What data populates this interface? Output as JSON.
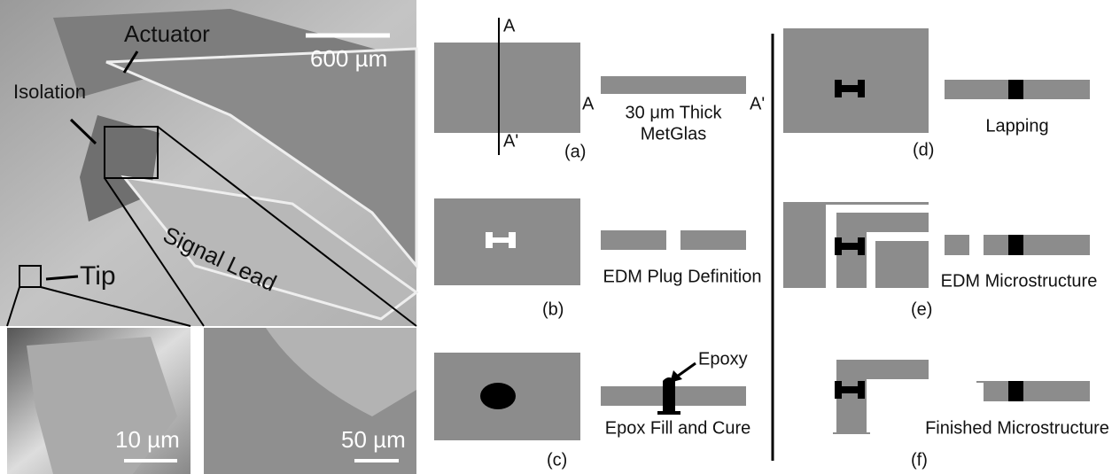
{
  "photo": {
    "labels": [
      "Actuator",
      "600 µm",
      "Isolation",
      "Signal Lead",
      "Tip"
    ],
    "insets": [
      "10 µm",
      "50 µm"
    ]
  },
  "panels": [
    {
      "tag": "(a)",
      "section_labels": [
        "A",
        "A'",
        "A",
        "A'"
      ],
      "caption": [
        "30 μm Thick",
        "MetGlas"
      ]
    },
    {
      "tag": "(b)",
      "caption": [
        "EDM Plug Definition"
      ]
    },
    {
      "tag": "(c)",
      "callout": "Epoxy",
      "caption": [
        "Epox Fill and Cure"
      ]
    },
    {
      "tag": "(d)",
      "caption": [
        "Lapping"
      ]
    },
    {
      "tag": "(e)",
      "caption": [
        "EDM Microstructure"
      ]
    },
    {
      "tag": "(f)",
      "caption": [
        "Finished Microstructure"
      ]
    }
  ]
}
